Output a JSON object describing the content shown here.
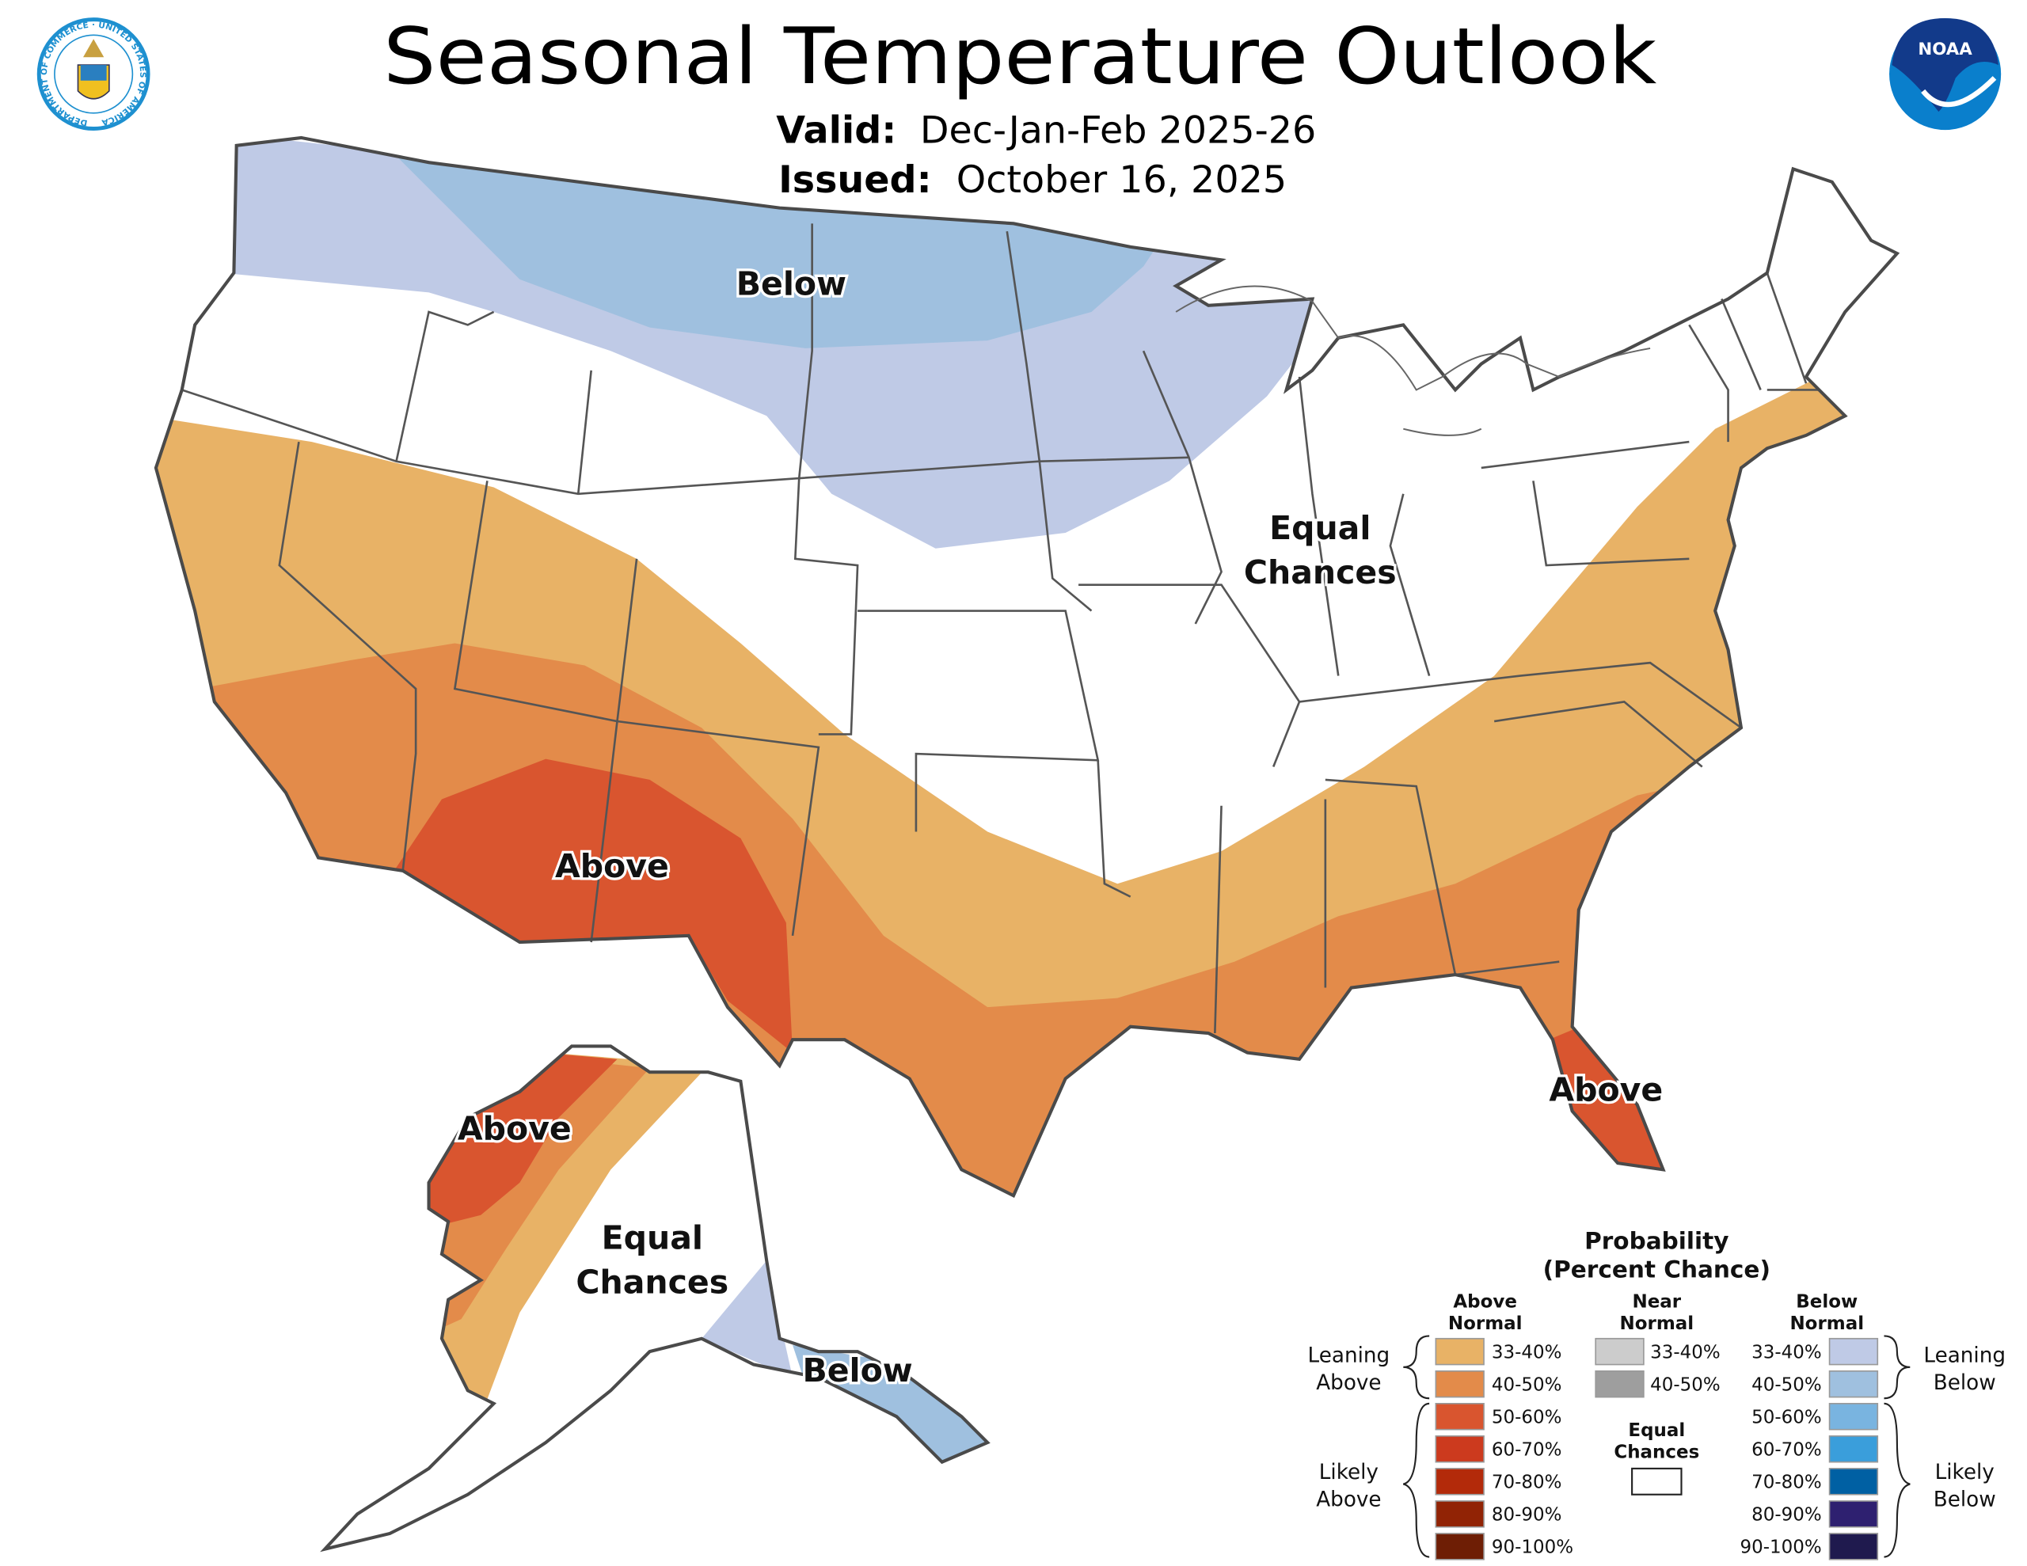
{
  "header": {
    "title": "Seasonal Temperature Outlook",
    "valid_label": "Valid:",
    "valid_value": "Dec-Jan-Feb 2025-26",
    "issued_label": "Issued:",
    "issued_value": "October 16, 2025",
    "left_logo": "Department of Commerce seal",
    "left_logo_text": "DEPARTMENT OF COMMERCE · UNITED STATES OF AMERICA",
    "right_logo": "NOAA logo",
    "right_logo_text": "NOAA"
  },
  "colors": {
    "state_line": "#555555",
    "outline": "#4a4a4a",
    "above_33_40": "#e8b266",
    "above_40_50": "#e38b4a",
    "above_50_60": "#d9552f",
    "below_33_40": "#bfcae6",
    "below_40_50": "#9fc0df",
    "equal": "#ffffff"
  },
  "map_labels": {
    "conus_below": "Below",
    "conus_equal_1": "Equal",
    "conus_equal_2": "Chances",
    "conus_above_sw": "Above",
    "conus_above_fl": "Above",
    "ak_above": "Above",
    "ak_equal_1": "Equal",
    "ak_equal_2": "Chances",
    "ak_below": "Below"
  },
  "legend": {
    "title_1": "Probability",
    "title_2": "(Percent Chance)",
    "above_header_1": "Above",
    "above_header_2": "Normal",
    "near_header_1": "Near",
    "near_header_2": "Normal",
    "below_header_1": "Below",
    "below_header_2": "Normal",
    "leaning_above_1": "Leaning",
    "leaning_above_2": "Above",
    "likely_above_1": "Likely",
    "likely_above_2": "Above",
    "leaning_below_1": "Leaning",
    "leaning_below_2": "Below",
    "likely_below_1": "Likely",
    "likely_below_2": "Below",
    "equal_1": "Equal",
    "equal_2": "Chances",
    "above": [
      {
        "label": "33-40%",
        "color": "#e8b266"
      },
      {
        "label": "40-50%",
        "color": "#e38b4a"
      },
      {
        "label": "50-60%",
        "color": "#d9552f"
      },
      {
        "label": "60-70%",
        "color": "#cc3a1e"
      },
      {
        "label": "70-80%",
        "color": "#b32a0a"
      },
      {
        "label": "80-90%",
        "color": "#912305"
      },
      {
        "label": "90-100%",
        "color": "#6e1e05"
      }
    ],
    "near": [
      {
        "label": "33-40%",
        "color": "#cccccc"
      },
      {
        "label": "40-50%",
        "color": "#9e9e9e"
      }
    ],
    "below": [
      {
        "label": "33-40%",
        "color": "#bfcae6"
      },
      {
        "label": "40-50%",
        "color": "#9fc0df"
      },
      {
        "label": "50-60%",
        "color": "#79b4e0"
      },
      {
        "label": "60-70%",
        "color": "#3a9edb"
      },
      {
        "label": "70-80%",
        "color": "#0060a3"
      },
      {
        "label": "80-90%",
        "color": "#2e2070"
      },
      {
        "label": "90-100%",
        "color": "#1f1a4e"
      }
    ]
  }
}
